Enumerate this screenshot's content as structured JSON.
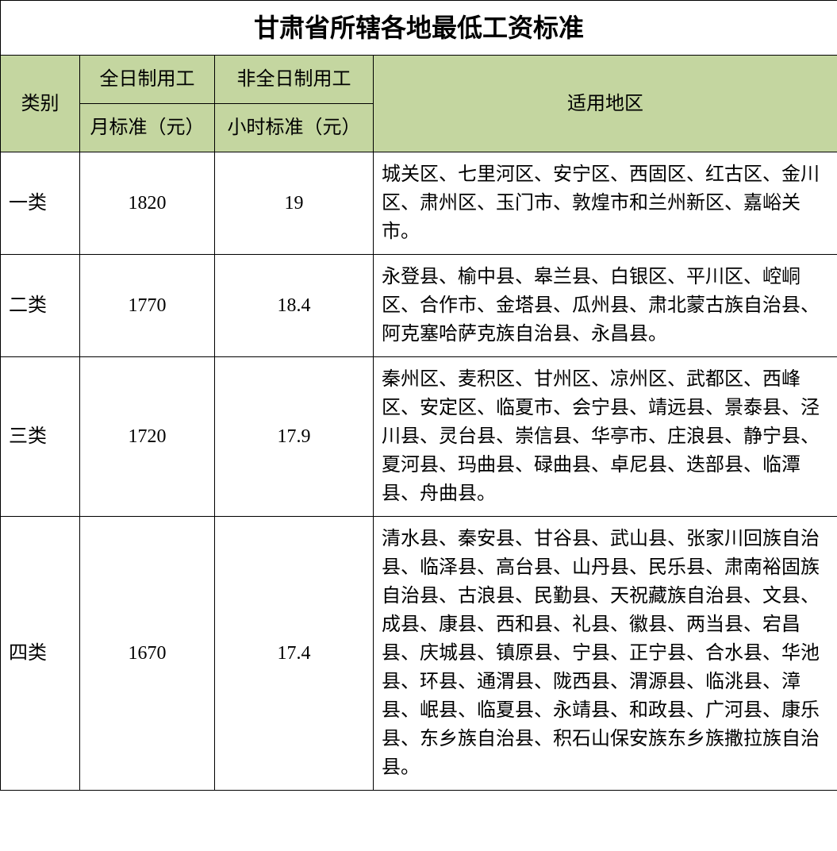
{
  "title": "甘肃省所辖各地最低工资标准",
  "headers": {
    "category": "类别",
    "fulltime": "全日制用工",
    "parttime": "非全日制用工",
    "monthly": "月标准（元）",
    "hourly": "小时标准（元）",
    "region": "适用地区"
  },
  "colors": {
    "header_bg": "#c4d6a0",
    "border": "#000000",
    "background": "#ffffff"
  },
  "rows": [
    {
      "category": "一类",
      "monthly": "1820",
      "hourly": "19",
      "region": "城关区、七里河区、安宁区、西固区、红古区、金川区、肃州区、玉门市、敦煌市和兰州新区、嘉峪关市。"
    },
    {
      "category": "二类",
      "monthly": "1770",
      "hourly": "18.4",
      "region": "永登县、榆中县、皋兰县、白银区、平川区、崆峒区、合作市、金塔县、瓜州县、肃北蒙古族自治县、阿克塞哈萨克族自治县、永昌县。"
    },
    {
      "category": "三类",
      "monthly": "1720",
      "hourly": "17.9",
      "region": "秦州区、麦积区、甘州区、凉州区、武都区、西峰区、安定区、临夏市、会宁县、靖远县、景泰县、泾川县、灵台县、崇信县、华亭市、庄浪县、静宁县、夏河县、玛曲县、碌曲县、卓尼县、迭部县、临潭县、舟曲县。"
    },
    {
      "category": "四类",
      "monthly": "1670",
      "hourly": "17.4",
      "region": "清水县、秦安县、甘谷县、武山县、张家川回族自治县、临泽县、高台县、山丹县、民乐县、肃南裕固族自治县、古浪县、民勤县、天祝藏族自治县、文县、成县、康县、西和县、礼县、徽县、两当县、宕昌县、庆城县、镇原县、宁县、正宁县、合水县、华池县、环县、通渭县、陇西县、渭源县、临洮县、漳县、岷县、临夏县、永靖县、和政县、广河县、康乐县、东乡族自治县、积石山保安族东乡族撒拉族自治县。"
    }
  ]
}
